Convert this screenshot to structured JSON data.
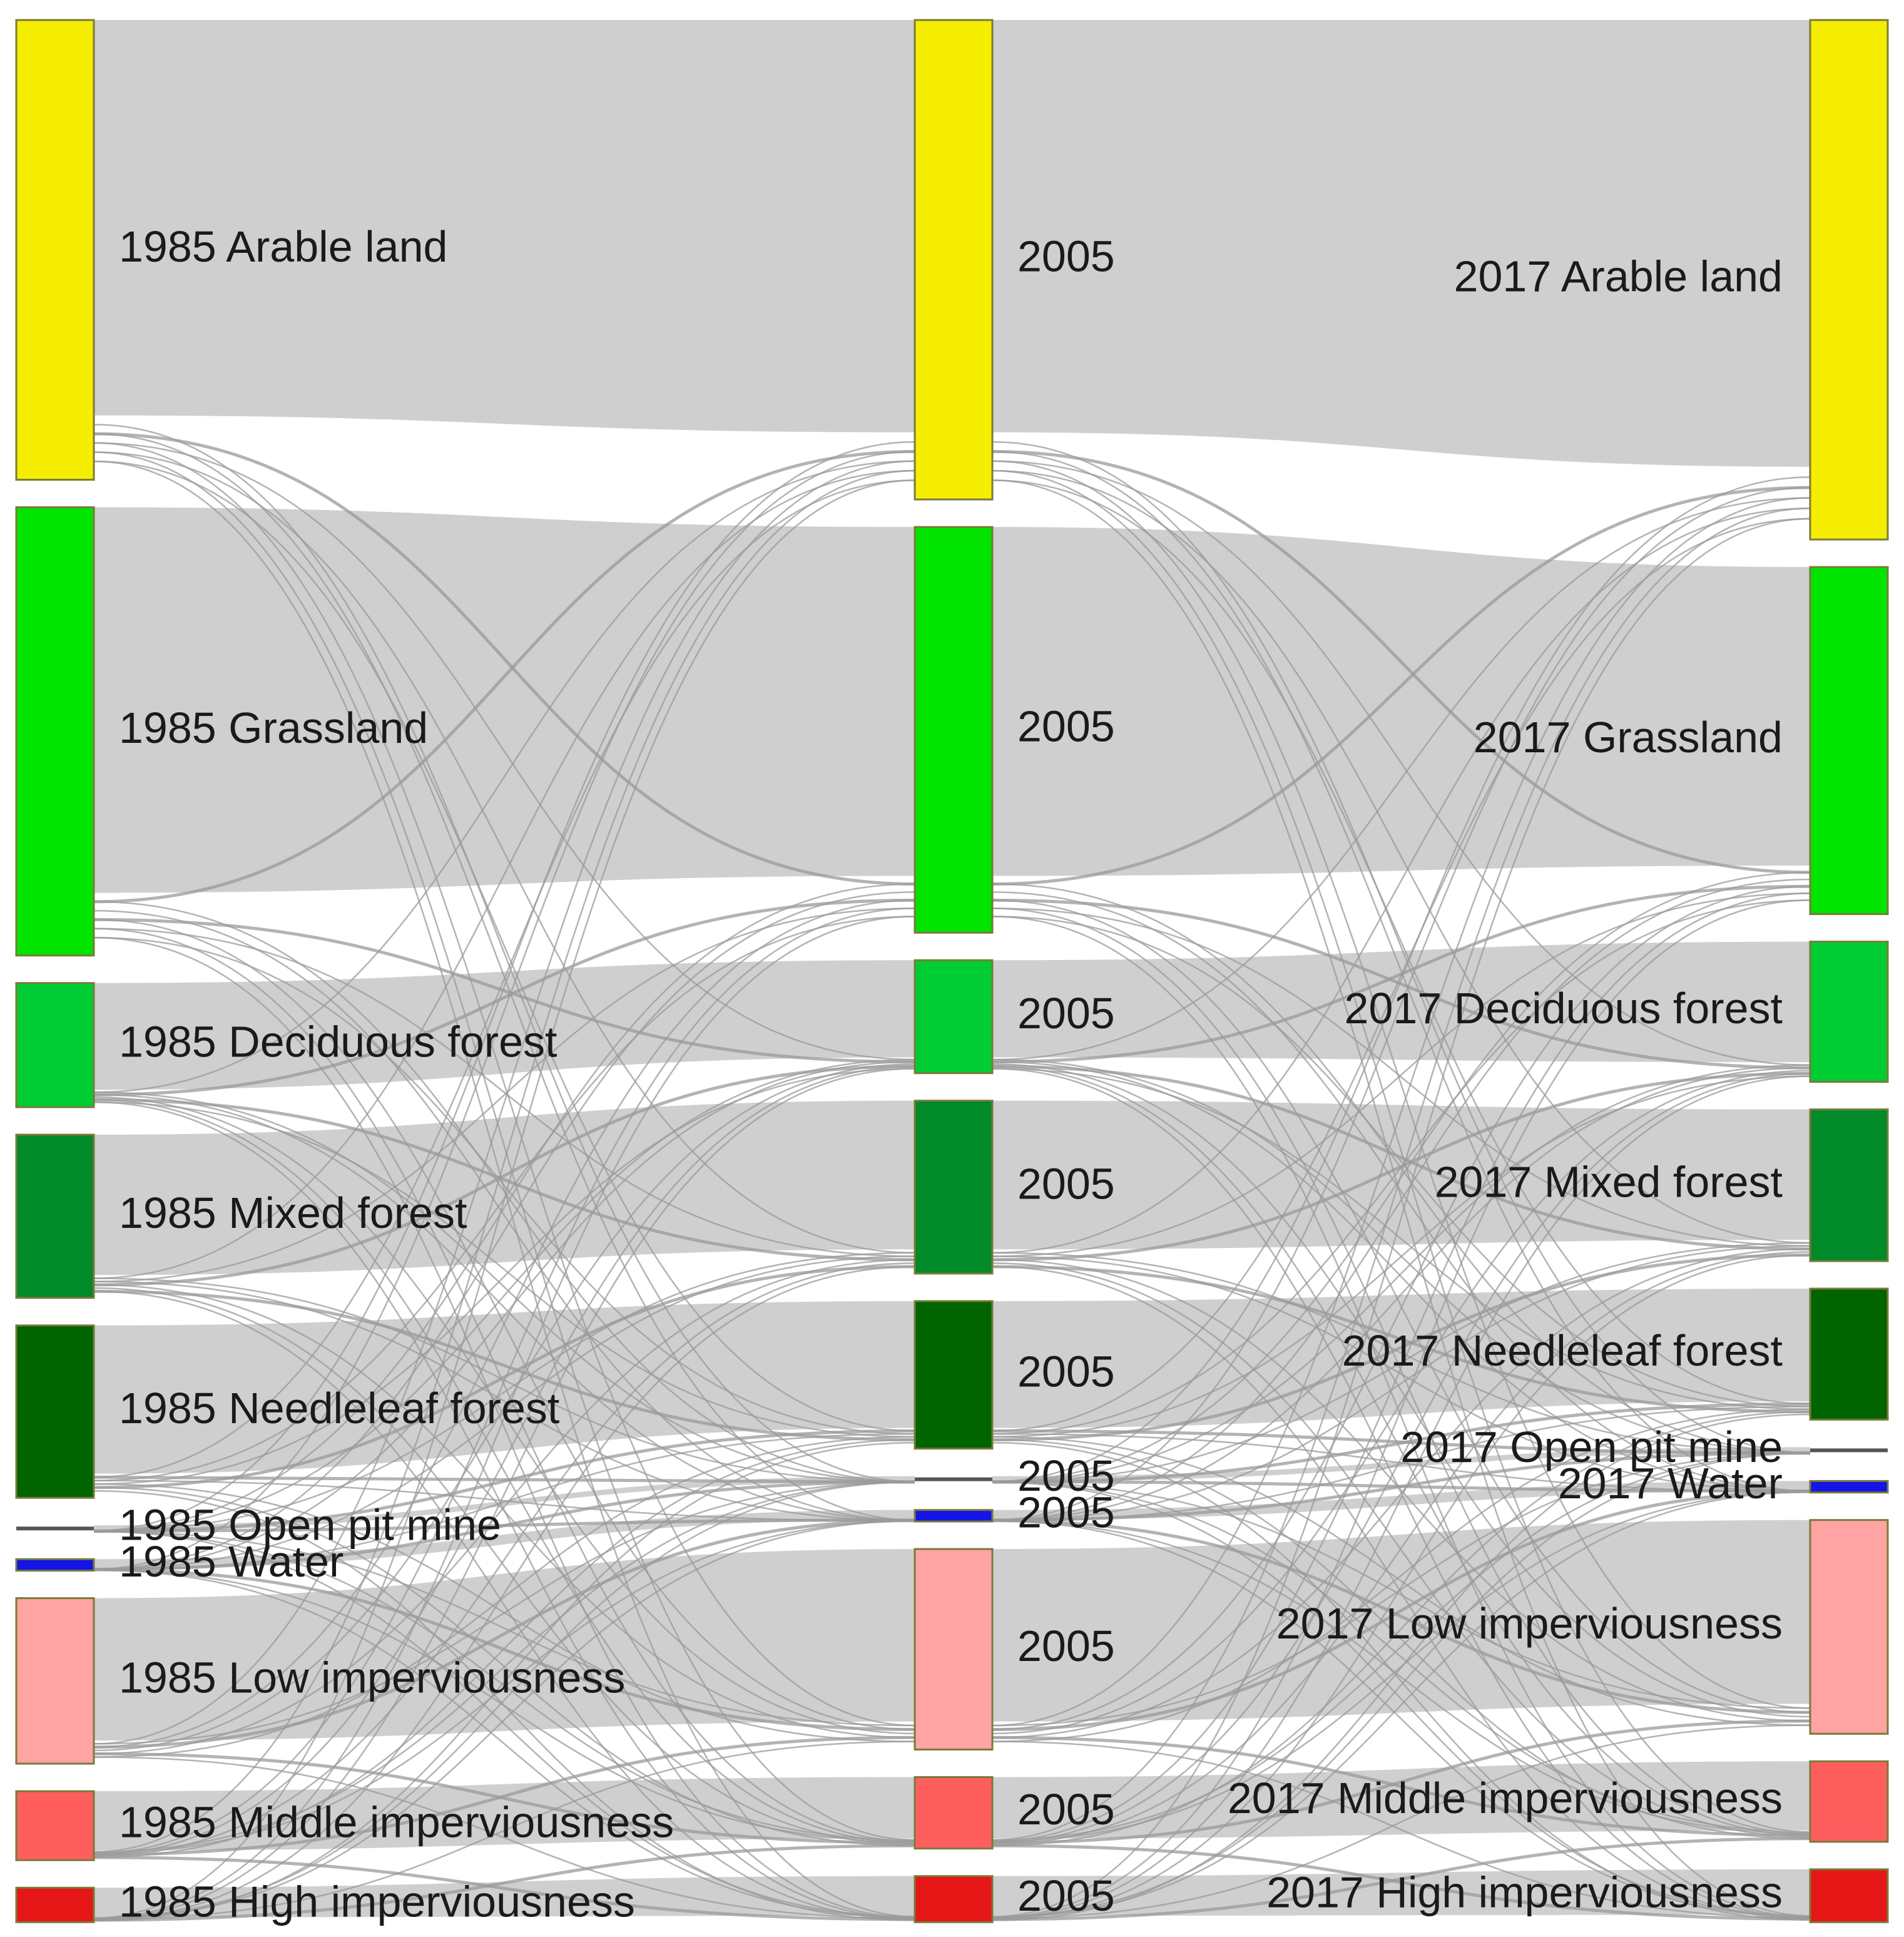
{
  "chart_data": {
    "type": "sankey",
    "columns": [
      {
        "year": "1985",
        "nodes": [
          {
            "label": "1985 Arable land",
            "class": "arable",
            "value": 20.0
          },
          {
            "label": "1985 Grassland",
            "class": "grass",
            "value": 19.5
          },
          {
            "label": "1985 Deciduous forest",
            "class": "decid",
            "value": 5.4
          },
          {
            "label": "1985 Mixed forest",
            "class": "mixed",
            "value": 7.1
          },
          {
            "label": "1985 Needleleaf forest",
            "class": "needle",
            "value": 7.5
          },
          {
            "label": "1985 Open pit mine",
            "class": "mine",
            "value": 0.1
          },
          {
            "label": "1985 Water",
            "class": "water",
            "value": 0.5
          },
          {
            "label": "1985 Low imperviousness",
            "class": "low",
            "value": 7.2
          },
          {
            "label": "1985 Middle imperviousness",
            "class": "mid",
            "value": 3.0
          },
          {
            "label": "1985 High imperviousness",
            "class": "high",
            "value": 1.5
          }
        ]
      },
      {
        "year": "2005",
        "nodes": [
          {
            "label": "2005",
            "class": "arable",
            "value": 20.8
          },
          {
            "label": "2005",
            "class": "grass",
            "value": 17.6
          },
          {
            "label": "2005",
            "class": "decid",
            "value": 4.9
          },
          {
            "label": "2005",
            "class": "mixed",
            "value": 7.5
          },
          {
            "label": "2005",
            "class": "needle",
            "value": 6.4
          },
          {
            "label": "2005",
            "class": "mine",
            "value": 0.1
          },
          {
            "label": "2005",
            "class": "water",
            "value": 0.5
          },
          {
            "label": "2005",
            "class": "low",
            "value": 8.7
          },
          {
            "label": "2005",
            "class": "mid",
            "value": 3.1
          },
          {
            "label": "2005",
            "class": "high",
            "value": 2.0
          }
        ]
      },
      {
        "year": "2017",
        "nodes": [
          {
            "label": "2017 Arable land",
            "class": "arable",
            "value": 22.6
          },
          {
            "label": "2017 Grassland",
            "class": "grass",
            "value": 15.1
          },
          {
            "label": "2017 Deciduous forest",
            "class": "decid",
            "value": 6.1
          },
          {
            "label": "2017 Mixed forest",
            "class": "mixed",
            "value": 6.6
          },
          {
            "label": "2017 Needleleaf forest",
            "class": "needle",
            "value": 5.7
          },
          {
            "label": "2017 Open pit mine",
            "class": "mine",
            "value": 0.1
          },
          {
            "label": "2017 Water",
            "class": "water",
            "value": 0.5
          },
          {
            "label": "2017 Low imperviousness",
            "class": "low",
            "value": 9.3
          },
          {
            "label": "2017 Middle imperviousness",
            "class": "mid",
            "value": 3.5
          },
          {
            "label": "2017 High imperviousness",
            "class": "high",
            "value": 2.3
          }
        ]
      }
    ],
    "colors": {
      "arable": "#f5ee00",
      "grass": "#00e400",
      "decid": "#00cc33",
      "mixed": "#008a2a",
      "needle": "#006400",
      "mine": "#555555",
      "water": "#1414e6",
      "low": "#ffa3a3",
      "mid": "#ff5e5e",
      "high": "#e51616"
    },
    "link_color": "#cfcfcf",
    "cross_link_color": "#9a9a9a"
  }
}
